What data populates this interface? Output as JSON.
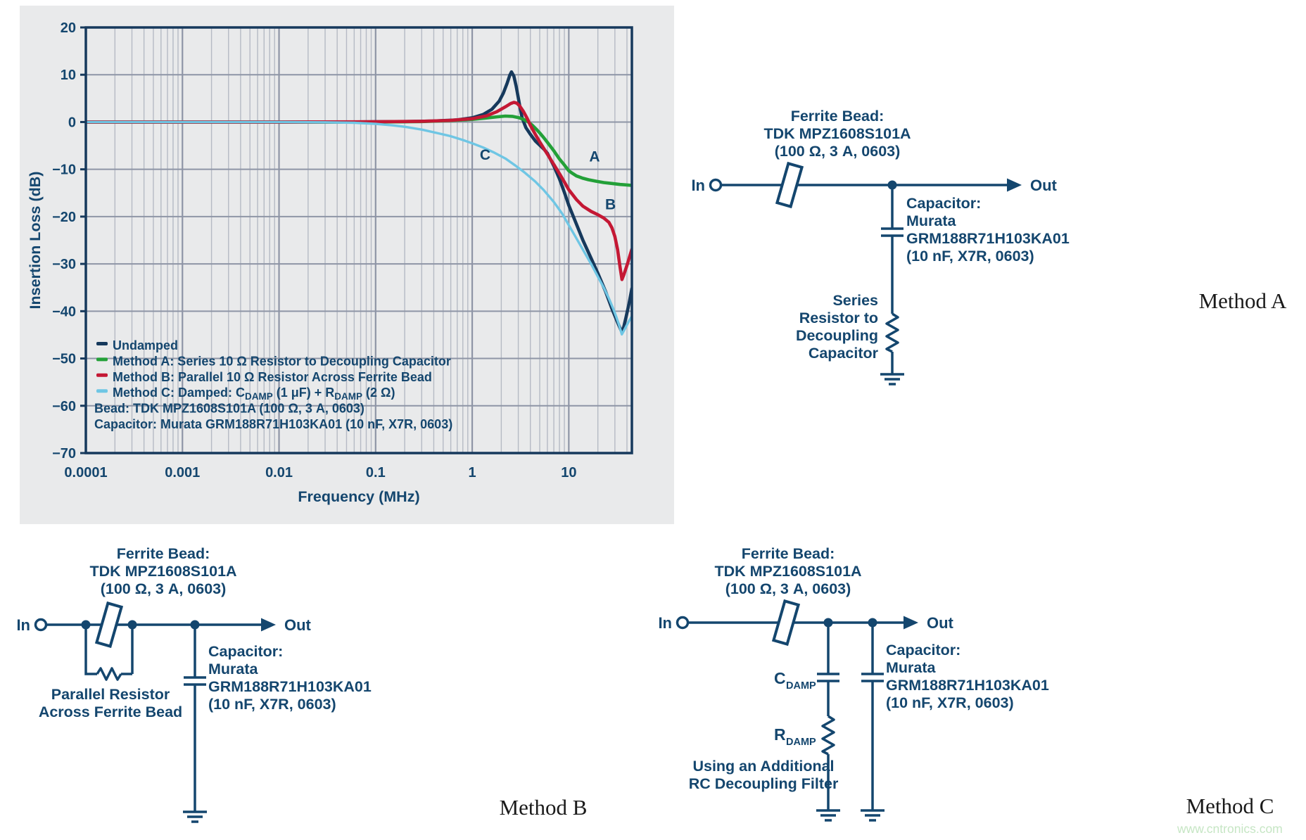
{
  "chart_data": {
    "type": "line",
    "xlabel": "Frequency (MHz)",
    "ylabel": "Insertion Loss (dB)",
    "x_scale": "log",
    "xlim": [
      0.0001,
      45
    ],
    "ylim": [
      -70,
      20
    ],
    "x_tick_values": [
      0.0001,
      0.001,
      0.01,
      0.1,
      1,
      10
    ],
    "x_tick_labels": [
      "0.0001",
      "0.001",
      "0.01",
      "0.1",
      "1",
      "10"
    ],
    "y_tick_values": [
      20,
      10,
      0,
      -10,
      -20,
      -30,
      -40,
      -50,
      -60,
      -70
    ],
    "y_tick_labels": [
      "20",
      "10",
      "0",
      "−10",
      "−20",
      "−30",
      "−40",
      "−50",
      "−60",
      "−70"
    ],
    "grid": "log minor + major gridlines, horizontal every 10 dB",
    "legend_position": "inside bottom-left",
    "series": [
      {
        "name": "Undamped",
        "color": "#16395c",
        "width": 4.6,
        "points": [
          [
            0.0001,
            0
          ],
          [
            0.001,
            0
          ],
          [
            0.01,
            0
          ],
          [
            0.05,
            0
          ],
          [
            0.1,
            0.05
          ],
          [
            0.2,
            0.1
          ],
          [
            0.4,
            0.2
          ],
          [
            0.7,
            0.45
          ],
          [
            1,
            0.9
          ],
          [
            1.3,
            1.6
          ],
          [
            1.6,
            2.7
          ],
          [
            1.9,
            4.4
          ],
          [
            2.1,
            6.1
          ],
          [
            2.3,
            8.2
          ],
          [
            2.45,
            9.9
          ],
          [
            2.55,
            10.6
          ],
          [
            2.7,
            9.7
          ],
          [
            2.85,
            7.6
          ],
          [
            3,
            5.1
          ],
          [
            3.15,
            2.7
          ],
          [
            3.3,
            0.8
          ],
          [
            3.6,
            -1.2
          ],
          [
            4,
            -2.6
          ],
          [
            4.5,
            -4
          ],
          [
            5,
            -4.9
          ],
          [
            5.5,
            -5.7
          ],
          [
            6,
            -6.6
          ],
          [
            7,
            -9.3
          ],
          [
            8,
            -12
          ],
          [
            9,
            -14.9
          ],
          [
            10,
            -17.6
          ],
          [
            12,
            -21.6
          ],
          [
            14,
            -25
          ],
          [
            17,
            -28.8
          ],
          [
            20,
            -32
          ],
          [
            24,
            -35.8
          ],
          [
            28,
            -39.5
          ],
          [
            31,
            -41.7
          ],
          [
            33,
            -43
          ],
          [
            35.4,
            -44.4
          ],
          [
            37,
            -43.4
          ],
          [
            39,
            -41.4
          ],
          [
            42,
            -38.4
          ],
          [
            45,
            -35.2
          ]
        ]
      },
      {
        "name": "Method A: Series 10 Ω Resistor to Decoupling Capacitor",
        "color": "#23a038",
        "width": 4.6,
        "points": [
          [
            0.0001,
            0
          ],
          [
            0.01,
            0
          ],
          [
            0.1,
            0
          ],
          [
            0.3,
            0.1
          ],
          [
            0.6,
            0.3
          ],
          [
            1,
            0.55
          ],
          [
            1.4,
            0.85
          ],
          [
            1.8,
            1.1
          ],
          [
            2.2,
            1.25
          ],
          [
            2.6,
            1.2
          ],
          [
            3,
            0.95
          ],
          [
            3.4,
            0.55
          ],
          [
            3.8,
            0
          ],
          [
            4.2,
            -0.7
          ],
          [
            4.6,
            -1.5
          ],
          [
            5,
            -2.3
          ],
          [
            5.5,
            -3.3
          ],
          [
            6,
            -4.3
          ],
          [
            7,
            -6.1
          ],
          [
            8,
            -7.8
          ],
          [
            9,
            -9.1
          ],
          [
            10,
            -10.3
          ],
          [
            11,
            -10.9
          ],
          [
            12,
            -11.4
          ],
          [
            14,
            -11.9
          ],
          [
            16,
            -12.2
          ],
          [
            19,
            -12.5
          ],
          [
            23,
            -12.8
          ],
          [
            28,
            -13
          ],
          [
            34,
            -13.2
          ],
          [
            40,
            -13.3
          ],
          [
            45,
            -13.4
          ]
        ]
      },
      {
        "name": "Method B: Parallel 10 Ω Resistor Across Ferrite Bead",
        "color": "#c41834",
        "width": 4.6,
        "points": [
          [
            0.0001,
            0
          ],
          [
            0.01,
            0
          ],
          [
            0.1,
            0.05
          ],
          [
            0.3,
            0.15
          ],
          [
            0.6,
            0.35
          ],
          [
            1,
            0.7
          ],
          [
            1.4,
            1.3
          ],
          [
            1.8,
            2.2
          ],
          [
            2.2,
            3.2
          ],
          [
            2.5,
            3.9
          ],
          [
            2.7,
            4.15
          ],
          [
            2.9,
            4
          ],
          [
            3.1,
            3.4
          ],
          [
            3.4,
            2.2
          ],
          [
            3.7,
            0.8
          ],
          [
            4,
            -0.7
          ],
          [
            4.5,
            -2.6
          ],
          [
            5,
            -4.2
          ],
          [
            6,
            -6.8
          ],
          [
            7,
            -9
          ],
          [
            8,
            -10.9
          ],
          [
            9,
            -12.7
          ],
          [
            10,
            -14.3
          ],
          [
            12,
            -16.4
          ],
          [
            14,
            -17.8
          ],
          [
            17,
            -18.9
          ],
          [
            20,
            -19.6
          ],
          [
            23,
            -20.3
          ],
          [
            26,
            -21.2
          ],
          [
            28,
            -22.4
          ],
          [
            30,
            -24.2
          ],
          [
            32,
            -27
          ],
          [
            34,
            -30.8
          ],
          [
            35.5,
            -33.3
          ],
          [
            37,
            -32.4
          ],
          [
            39,
            -31
          ],
          [
            41,
            -29.6
          ],
          [
            43,
            -28.2
          ],
          [
            45,
            -26.9
          ]
        ]
      },
      {
        "name": "Method C: Damped: CDAMP (1 μF) + RDAMP (2 Ω)",
        "color": "#6fc6e4",
        "width": 3.4,
        "points": [
          [
            0.0001,
            0
          ],
          [
            0.01,
            0
          ],
          [
            0.03,
            -0.05
          ],
          [
            0.06,
            -0.15
          ],
          [
            0.1,
            -0.4
          ],
          [
            0.15,
            -0.7
          ],
          [
            0.2,
            -1
          ],
          [
            0.3,
            -1.6
          ],
          [
            0.45,
            -2.4
          ],
          [
            0.6,
            -3
          ],
          [
            0.8,
            -3.8
          ],
          [
            1,
            -4.5
          ],
          [
            1.3,
            -5.4
          ],
          [
            1.7,
            -6.5
          ],
          [
            2.2,
            -7.7
          ],
          [
            2.8,
            -9.2
          ],
          [
            3.5,
            -10.7
          ],
          [
            4.5,
            -12.6
          ],
          [
            5.5,
            -14.4
          ],
          [
            7,
            -16.9
          ],
          [
            8.5,
            -19.3
          ],
          [
            10,
            -21.8
          ],
          [
            12,
            -24.6
          ],
          [
            14,
            -27
          ],
          [
            17,
            -30
          ],
          [
            20,
            -32.7
          ],
          [
            23,
            -35
          ],
          [
            26,
            -37.3
          ],
          [
            29,
            -39.6
          ],
          [
            31,
            -41.2
          ],
          [
            33,
            -42.8
          ],
          [
            35.4,
            -44.9
          ],
          [
            37.5,
            -44
          ],
          [
            39.5,
            -43.1
          ],
          [
            42,
            -42.1
          ],
          [
            45,
            -41.1
          ]
        ]
      }
    ],
    "legend_items": [
      {
        "color": "#16395c",
        "parts": [
          {
            "t": "Undamped"
          }
        ]
      },
      {
        "color": "#23a038",
        "parts": [
          {
            "t": "Method A: Series 10 Ω Resistor to Decoupling Capacitor"
          }
        ]
      },
      {
        "color": "#c41834",
        "parts": [
          {
            "t": "Method B: Parallel 10 Ω Resistor Across Ferrite Bead"
          }
        ]
      },
      {
        "color": "#6fc6e4",
        "parts": [
          {
            "t": "Method C: Damped: C"
          },
          {
            "t": "DAMP",
            "sub": true
          },
          {
            "t": " (1 μF) + R"
          },
          {
            "t": "DAMP",
            "sub": true
          },
          {
            "t": " (2 Ω)"
          }
        ]
      },
      {
        "parts": [
          {
            "t": "Bead: TDK MPZ1608S101A (100 Ω, 3 A, 0603)"
          }
        ]
      },
      {
        "parts": [
          {
            "t": "Capacitor: Murata GRM188R71H103KA01 (10 nF, X7R, 0603)"
          }
        ]
      }
    ],
    "curve_labels": [
      {
        "text": "A",
        "f": 18.5,
        "db": -7.3
      },
      {
        "text": "B",
        "f": 27,
        "db": -17.4
      },
      {
        "text": "C",
        "f": 1.36,
        "db": -6.9
      }
    ]
  },
  "circuits": {
    "method_a": {
      "bead_lines": [
        "Ferrite Bead:",
        "TDK MPZ1608S101A",
        "(100 Ω, 3 A, 0603)"
      ],
      "in_label": "In",
      "out_label": "Out",
      "cap_lines": [
        "Capacitor:",
        "Murata",
        "GRM188R71H103KA01",
        "(10 nF, X7R, 0603)"
      ],
      "series_res_lines": [
        "Series",
        "Resistor to",
        "Decoupling",
        "Capacitor"
      ]
    },
    "method_b": {
      "bead_lines": [
        "Ferrite Bead:",
        "TDK MPZ1608S101A",
        "(100 Ω, 3 A, 0603)"
      ],
      "in_label": "In",
      "out_label": "Out",
      "cap_lines": [
        "Capacitor:",
        "Murata",
        "GRM188R71H103KA01",
        "(10 nF, X7R, 0603)"
      ],
      "res_lines": [
        "Parallel Resistor",
        "Across Ferrite Bead"
      ]
    },
    "method_c": {
      "bead_lines": [
        "Ferrite Bead:",
        "TDK MPZ1608S101A",
        "(100 Ω, 3 A, 0603)"
      ],
      "in_label": "In",
      "out_label": "Out",
      "cap_lines": [
        "Capacitor:",
        "Murata",
        "GRM188R71H103KA01",
        "(10 nF, X7R, 0603)"
      ],
      "cdamp_base": "C",
      "cdamp_sub": "DAMP",
      "rdamp_base": "R",
      "rdamp_sub": "DAMP",
      "caption_lines": [
        "Using an Additional",
        "RC Decoupling Filter"
      ]
    }
  },
  "labels": {
    "method_a": "Method A",
    "method_b": "Method B",
    "method_c": "Method C"
  },
  "watermark": {
    "text": "www.cntronics.com",
    "color": "#c6e6c4"
  },
  "colors": {
    "navy_curve": "#16395c",
    "green_curve": "#23a038",
    "red_curve": "#c41834",
    "cyan_curve": "#6fc6e4",
    "diagram_ink": "#14466e",
    "panel_bg": "#e9eaeb",
    "grid_major": "#8e95a6",
    "grid_minor": "#b5bac4"
  }
}
